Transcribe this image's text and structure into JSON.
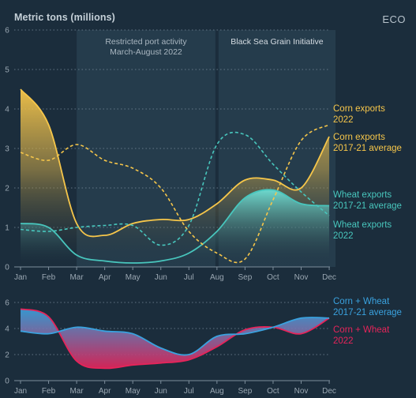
{
  "header": {
    "ylabel": "Metric tons (millions)",
    "brand": "ECO"
  },
  "colors": {
    "background": "#1b2d3c",
    "corn": "#f6c64a",
    "wheat": "#48c6bd",
    "combo_avg": "#3aa2df",
    "combo_2022": "#e6245a",
    "grid": "#8093a2"
  },
  "chart_data": [
    {
      "type": "line",
      "title": "",
      "ylabel": "Metric tons (millions)",
      "ylim": [
        0,
        6
      ],
      "yticks": [
        0,
        1,
        2,
        3,
        4,
        5,
        6
      ],
      "x": [
        "Jan",
        "Feb",
        "Mar",
        "Apr",
        "May",
        "Jun",
        "Jul",
        "Aug",
        "Sep",
        "Oct",
        "Nov",
        "Dec"
      ],
      "grid": true,
      "shaded_regions": [
        {
          "label_lines": [
            "Restricted port activity",
            "March-August 2022"
          ],
          "start_month": "Mar",
          "end_month": "Aug"
        },
        {
          "label_lines": [
            "Black Sea Grain Initiative"
          ],
          "start_month": "Aug",
          "end_month": "Dec"
        }
      ],
      "series": [
        {
          "name": "Corn exports 2022",
          "legend_lines": [
            "Corn exports",
            "2022"
          ],
          "style": "solid-area",
          "color": "#f6c64a",
          "values": [
            4.5,
            3.6,
            1.1,
            0.8,
            1.1,
            1.2,
            1.2,
            1.6,
            2.2,
            2.2,
            2.0,
            3.3
          ]
        },
        {
          "name": "Corn exports 2017-21 average",
          "legend_lines": [
            "Corn exports",
            "2017-21 average"
          ],
          "style": "dashed",
          "color": "#f6c64a",
          "values": [
            2.9,
            2.7,
            3.1,
            2.7,
            2.5,
            2.0,
            0.9,
            0.35,
            0.2,
            1.7,
            3.2,
            3.6
          ]
        },
        {
          "name": "Wheat exports 2017-21 average",
          "legend_lines": [
            "Wheat exports",
            "2017-21 average"
          ],
          "style": "solid-area",
          "color": "#48c6bd",
          "values": [
            1.1,
            1.0,
            0.3,
            0.15,
            0.1,
            0.15,
            0.35,
            0.9,
            1.75,
            1.95,
            1.6,
            1.55
          ]
        },
        {
          "name": "Wheat exports 2022",
          "legend_lines": [
            "Wheat exports",
            "2022"
          ],
          "style": "dashed",
          "color": "#48c6bd",
          "values": [
            0.95,
            0.9,
            1.0,
            1.05,
            1.05,
            0.55,
            1.05,
            3.1,
            3.35,
            2.6,
            1.9,
            1.3
          ]
        }
      ]
    },
    {
      "type": "line",
      "title": "",
      "ylim": [
        0,
        6
      ],
      "yticks": [
        0,
        2,
        4,
        6
      ],
      "x": [
        "Jan",
        "Feb",
        "Mar",
        "Apr",
        "May",
        "Jun",
        "Jul",
        "Aug",
        "Sep",
        "Oct",
        "Nov",
        "Dec"
      ],
      "grid": true,
      "series": [
        {
          "name": "Corn + Wheat 2017-21 average",
          "legend_lines": [
            "Corn + Wheat",
            "2017-21 average"
          ],
          "color": "#3aa2df",
          "values": [
            3.8,
            3.6,
            4.1,
            3.8,
            3.6,
            2.5,
            2.0,
            3.4,
            3.6,
            4.1,
            4.8,
            4.8
          ]
        },
        {
          "name": "Corn + Wheat 2022",
          "legend_lines": [
            "Corn + Wheat",
            "2022"
          ],
          "color": "#e6245a",
          "values": [
            5.5,
            4.9,
            1.5,
            0.95,
            1.2,
            1.35,
            1.6,
            2.6,
            3.9,
            4.1,
            3.6,
            4.8
          ]
        }
      ]
    }
  ]
}
